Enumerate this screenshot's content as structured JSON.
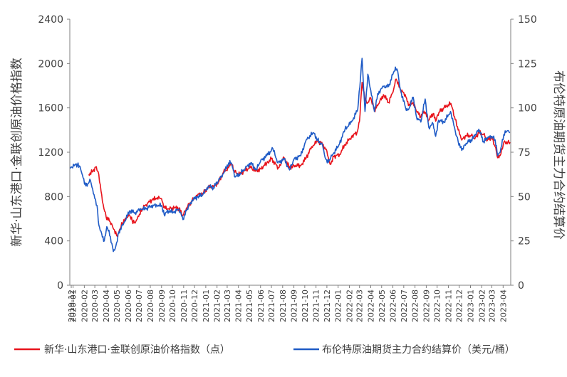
{
  "chart_data": {
    "type": "line",
    "title": "",
    "left_axis": {
      "label": "新华·山东港口·金联创原油价格指数",
      "ylim": [
        0,
        2400
      ],
      "ticks": [
        "0",
        "400",
        "800",
        "1200",
        "1600",
        "2000",
        "2400"
      ]
    },
    "right_axis": {
      "label": "布伦特原油期货主力合约结算价",
      "ylim": [
        0,
        150
      ],
      "ticks": [
        "0",
        "25",
        "50",
        "75",
        "100",
        "125",
        "150"
      ]
    },
    "x_ticks": [
      "2019-12",
      "2020-01",
      "2020-02",
      "2020-03",
      "2020-04",
      "2020-05",
      "2020-06",
      "2020-07",
      "2020-08",
      "2020-09",
      "2020-10",
      "2020-11",
      "2020-12",
      "2021-01",
      "2021-02",
      "2021-03",
      "2021-04",
      "2021-05",
      "2021-06",
      "2021-07",
      "2021-08",
      "2021-09",
      "2021-10",
      "2021-11",
      "2021-12",
      "2022-01",
      "2022-02",
      "2022-03",
      "2022-04",
      "2022-05",
      "2022-06",
      "2022-07",
      "2022-08",
      "2022-09",
      "2022-10",
      "2022-11",
      "2022-12",
      "2023-01",
      "2023-02",
      "2023-03",
      "2023-04"
    ],
    "xlim": [
      "2019-12-23",
      "2023-04-22"
    ],
    "legend_position": "bottom",
    "grid": false,
    "series": [
      {
        "name": "新华·山东港口·金联创原油价格指数（点）",
        "axis": "left",
        "color": "#e8141c",
        "points": [
          [
            "2020-02-13",
            1000
          ],
          [
            "2020-02-25",
            1030
          ],
          [
            "2020-03-05",
            1070
          ],
          [
            "2020-03-12",
            1000
          ],
          [
            "2020-03-18",
            850
          ],
          [
            "2020-03-24",
            730
          ],
          [
            "2020-04-01",
            620
          ],
          [
            "2020-04-10",
            580
          ],
          [
            "2020-04-18",
            540
          ],
          [
            "2020-04-24",
            500
          ],
          [
            "2020-05-02",
            440
          ],
          [
            "2020-05-08",
            500
          ],
          [
            "2020-05-16",
            560
          ],
          [
            "2020-05-26",
            600
          ],
          [
            "2020-06-05",
            630
          ],
          [
            "2020-06-12",
            580
          ],
          [
            "2020-06-20",
            560
          ],
          [
            "2020-06-30",
            620
          ],
          [
            "2020-07-10",
            690
          ],
          [
            "2020-07-24",
            740
          ],
          [
            "2020-08-07",
            770
          ],
          [
            "2020-08-20",
            790
          ],
          [
            "2020-09-01",
            780
          ],
          [
            "2020-09-07",
            700
          ],
          [
            "2020-09-21",
            690
          ],
          [
            "2020-10-08",
            700
          ],
          [
            "2020-10-19",
            690
          ],
          [
            "2020-10-30",
            630
          ],
          [
            "2020-11-10",
            700
          ],
          [
            "2020-11-24",
            760
          ],
          [
            "2020-12-10",
            820
          ],
          [
            "2020-12-24",
            830
          ],
          [
            "2021-01-08",
            880
          ],
          [
            "2021-01-22",
            890
          ],
          [
            "2021-02-05",
            930
          ],
          [
            "2021-02-19",
            1020
          ],
          [
            "2021-03-05",
            1060
          ],
          [
            "2021-03-12",
            1100
          ],
          [
            "2021-03-22",
            1020
          ],
          [
            "2021-04-05",
            1000
          ],
          [
            "2021-04-19",
            1040
          ],
          [
            "2021-05-05",
            1060
          ],
          [
            "2021-05-20",
            1030
          ],
          [
            "2021-06-01",
            1050
          ],
          [
            "2021-06-18",
            1100
          ],
          [
            "2021-07-01",
            1140
          ],
          [
            "2021-07-20",
            1060
          ],
          [
            "2021-08-05",
            1150
          ],
          [
            "2021-08-20",
            1060
          ],
          [
            "2021-09-01",
            1080
          ],
          [
            "2021-09-20",
            1080
          ],
          [
            "2021-10-05",
            1150
          ],
          [
            "2021-10-20",
            1250
          ],
          [
            "2021-11-05",
            1300
          ],
          [
            "2021-11-19",
            1270
          ],
          [
            "2021-12-01",
            1210
          ],
          [
            "2021-12-10",
            1090
          ],
          [
            "2021-12-20",
            1160
          ],
          [
            "2022-01-05",
            1180
          ],
          [
            "2022-01-20",
            1270
          ],
          [
            "2022-02-07",
            1340
          ],
          [
            "2022-02-22",
            1380
          ],
          [
            "2022-03-01",
            1480
          ],
          [
            "2022-03-04",
            1650
          ],
          [
            "2022-03-08",
            1830
          ],
          [
            "2022-03-15",
            1700
          ],
          [
            "2022-03-22",
            1640
          ],
          [
            "2022-04-01",
            1690
          ],
          [
            "2022-04-11",
            1580
          ],
          [
            "2022-04-20",
            1620
          ],
          [
            "2022-05-06",
            1720
          ],
          [
            "2022-05-20",
            1650
          ],
          [
            "2022-06-01",
            1740
          ],
          [
            "2022-06-10",
            1860
          ],
          [
            "2022-06-22",
            1760
          ],
          [
            "2022-07-05",
            1720
          ],
          [
            "2022-07-14",
            1620
          ],
          [
            "2022-07-27",
            1650
          ],
          [
            "2022-08-05",
            1570
          ],
          [
            "2022-08-17",
            1520
          ],
          [
            "2022-08-26",
            1570
          ],
          [
            "2022-09-08",
            1490
          ],
          [
            "2022-09-20",
            1550
          ],
          [
            "2022-09-27",
            1480
          ],
          [
            "2022-10-06",
            1560
          ],
          [
            "2022-10-20",
            1600
          ],
          [
            "2022-11-08",
            1640
          ],
          [
            "2022-11-18",
            1520
          ],
          [
            "2022-11-28",
            1400
          ],
          [
            "2022-12-08",
            1310
          ],
          [
            "2022-12-20",
            1350
          ],
          [
            "2023-01-03",
            1350
          ],
          [
            "2023-01-13",
            1320
          ],
          [
            "2023-01-24",
            1380
          ],
          [
            "2023-02-06",
            1360
          ],
          [
            "2023-02-17",
            1310
          ],
          [
            "2023-02-28",
            1340
          ],
          [
            "2023-03-10",
            1250
          ],
          [
            "2023-03-17",
            1150
          ],
          [
            "2023-03-24",
            1170
          ],
          [
            "2023-04-03",
            1290
          ],
          [
            "2023-04-14",
            1290
          ],
          [
            "2023-04-20",
            1290
          ]
        ]
      },
      {
        "name": "布伦特原油期货主力合约结算价（美元/桶）",
        "axis": "right",
        "color": "#1f5bc6",
        "points": [
          [
            "2019-12-23",
            66
          ],
          [
            "2020-01-06",
            68
          ],
          [
            "2020-01-13",
            68
          ],
          [
            "2020-01-20",
            67
          ],
          [
            "2020-01-27",
            62
          ],
          [
            "2020-02-05",
            56
          ],
          [
            "2020-02-18",
            59
          ],
          [
            "2020-02-28",
            51
          ],
          [
            "2020-03-07",
            45
          ],
          [
            "2020-03-12",
            34
          ],
          [
            "2020-03-20",
            29
          ],
          [
            "2020-03-27",
            25
          ],
          [
            "2020-04-03",
            33
          ],
          [
            "2020-04-09",
            31
          ],
          [
            "2020-04-21",
            19
          ],
          [
            "2020-04-28",
            22
          ],
          [
            "2020-05-06",
            30
          ],
          [
            "2020-05-20",
            35
          ],
          [
            "2020-06-05",
            42
          ],
          [
            "2020-06-20",
            41
          ],
          [
            "2020-07-06",
            43
          ],
          [
            "2020-07-20",
            43
          ],
          [
            "2020-08-05",
            45
          ],
          [
            "2020-08-20",
            45
          ],
          [
            "2020-09-01",
            45
          ],
          [
            "2020-09-08",
            40
          ],
          [
            "2020-09-21",
            42
          ],
          [
            "2020-10-05",
            41
          ],
          [
            "2020-10-19",
            43
          ],
          [
            "2020-10-30",
            37
          ],
          [
            "2020-11-09",
            42
          ],
          [
            "2020-11-24",
            48
          ],
          [
            "2020-12-10",
            50
          ],
          [
            "2020-12-24",
            51
          ],
          [
            "2021-01-08",
            56
          ],
          [
            "2021-01-22",
            55
          ],
          [
            "2021-02-05",
            59
          ],
          [
            "2021-02-19",
            63
          ],
          [
            "2021-03-05",
            69
          ],
          [
            "2021-03-12",
            69
          ],
          [
            "2021-03-23",
            61
          ],
          [
            "2021-04-06",
            63
          ],
          [
            "2021-04-20",
            66
          ],
          [
            "2021-05-05",
            69
          ],
          [
            "2021-05-20",
            65
          ],
          [
            "2021-06-01",
            70
          ],
          [
            "2021-06-18",
            73
          ],
          [
            "2021-07-05",
            77
          ],
          [
            "2021-07-19",
            69
          ],
          [
            "2021-08-05",
            71
          ],
          [
            "2021-08-20",
            65
          ],
          [
            "2021-09-01",
            71
          ],
          [
            "2021-09-20",
            73
          ],
          [
            "2021-10-05",
            82
          ],
          [
            "2021-10-25",
            86
          ],
          [
            "2021-11-05",
            82
          ],
          [
            "2021-11-19",
            79
          ],
          [
            "2021-11-26",
            72
          ],
          [
            "2021-12-02",
            69
          ],
          [
            "2021-12-15",
            73
          ],
          [
            "2022-01-03",
            79
          ],
          [
            "2022-01-20",
            88
          ],
          [
            "2022-02-07",
            92
          ],
          [
            "2022-02-24",
            99
          ],
          [
            "2022-03-04",
            118
          ],
          [
            "2022-03-08",
            128
          ],
          [
            "2022-03-16",
            98
          ],
          [
            "2022-03-24",
            119
          ],
          [
            "2022-04-11",
            98
          ],
          [
            "2022-04-20",
            108
          ],
          [
            "2022-05-06",
            112
          ],
          [
            "2022-05-20",
            112
          ],
          [
            "2022-06-08",
            123
          ],
          [
            "2022-06-14",
            121
          ],
          [
            "2022-06-22",
            110
          ],
          [
            "2022-07-06",
            100
          ],
          [
            "2022-07-14",
            99
          ],
          [
            "2022-07-27",
            106
          ],
          [
            "2022-08-05",
            95
          ],
          [
            "2022-08-17",
            92
          ],
          [
            "2022-08-29",
            105
          ],
          [
            "2022-09-08",
            89
          ],
          [
            "2022-09-20",
            91
          ],
          [
            "2022-09-27",
            84
          ],
          [
            "2022-10-05",
            93
          ],
          [
            "2022-10-20",
            92
          ],
          [
            "2022-11-07",
            98
          ],
          [
            "2022-11-20",
            87
          ],
          [
            "2022-11-28",
            81
          ],
          [
            "2022-12-08",
            76
          ],
          [
            "2022-12-20",
            80
          ],
          [
            "2023-01-03",
            82
          ],
          [
            "2023-01-13",
            84
          ],
          [
            "2023-01-24",
            88
          ],
          [
            "2023-02-06",
            81
          ],
          [
            "2023-02-17",
            83
          ],
          [
            "2023-02-28",
            84
          ],
          [
            "2023-03-10",
            82
          ],
          [
            "2023-03-17",
            73
          ],
          [
            "2023-03-24",
            75
          ],
          [
            "2023-04-03",
            85
          ],
          [
            "2023-04-12",
            87
          ],
          [
            "2023-04-20",
            86
          ]
        ]
      }
    ]
  }
}
